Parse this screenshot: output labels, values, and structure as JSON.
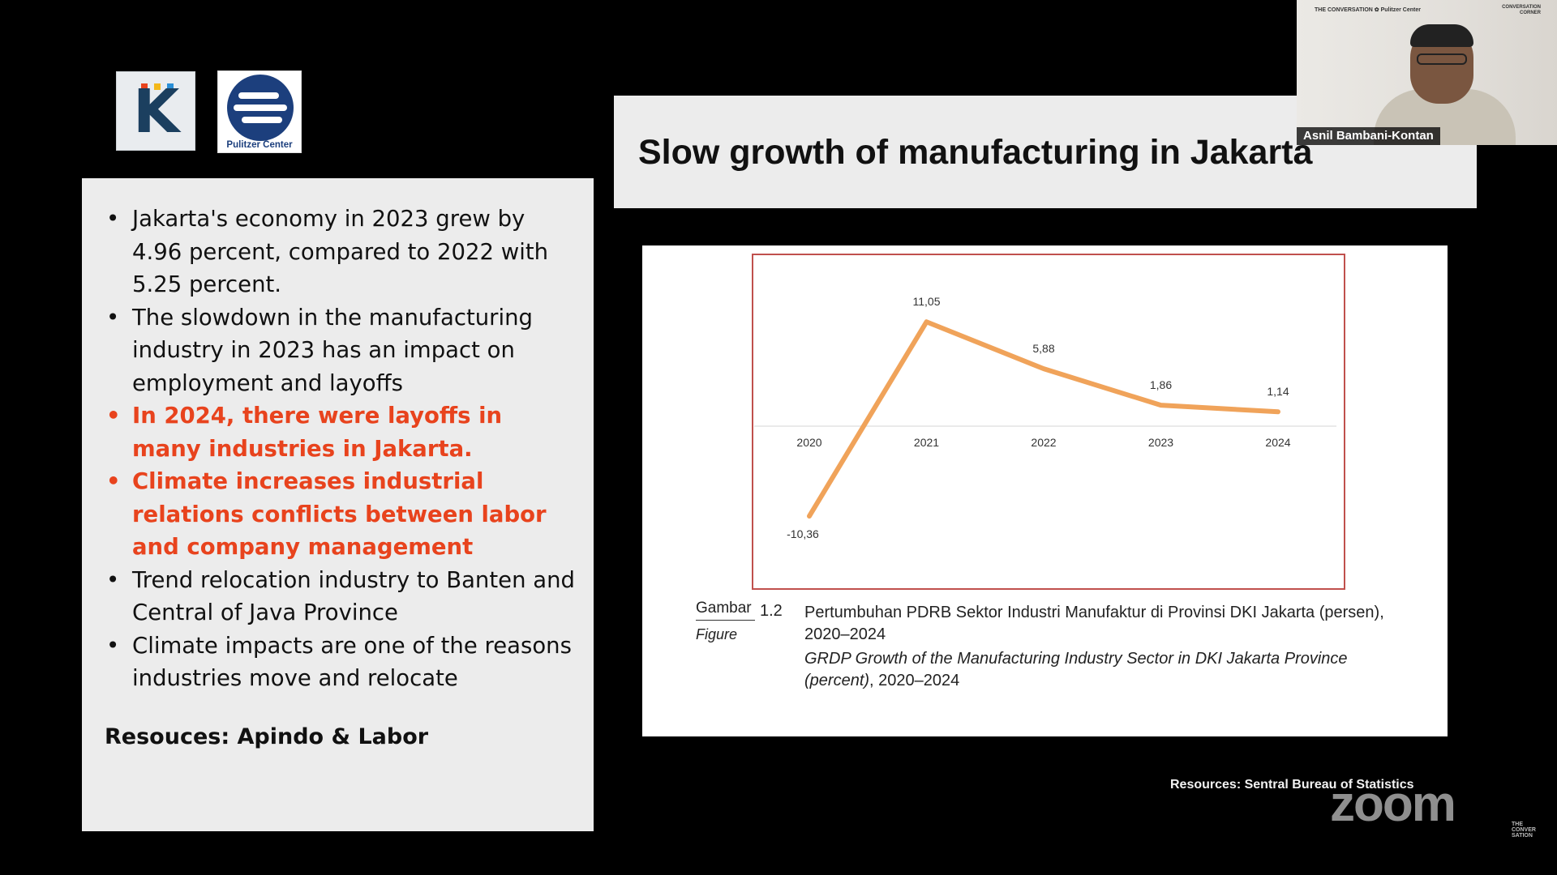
{
  "logos": {
    "k_letter": "K",
    "k_dot_colors": [
      "#e8431d",
      "#f3b81a",
      "#2a8fd6"
    ],
    "pulitzer_caption": "Pulitzer Center"
  },
  "left_panel": {
    "bullets": [
      {
        "text": "Jakarta's economy in 2023 grew by 4.96 percent, compared to 2022 with 5.25 percent.",
        "highlight": false
      },
      {
        "text": "The slowdown in the manufacturing industry in 2023 has an impact on employment and layoffs",
        "highlight": false
      },
      {
        "text": "In 2024, there were layoffs in many industries in Jakarta.",
        "highlight": true
      },
      {
        "text": "Climate increases industrial relations conflicts between labor and company management",
        "highlight": true
      },
      {
        "text": "Trend relocation industry to Banten and Central of Java Province",
        "highlight": false
      },
      {
        "text": "Climate impacts are one of the reasons industries move and relocate",
        "highlight": false
      }
    ],
    "bullet_glyph": "•",
    "resources": "Resouces: Apindo & Labor",
    "highlight_color": "#e8431d"
  },
  "slide_title": "Slow growth of manufacturing in Jakarta",
  "chart_data": {
    "type": "line",
    "x": [
      "2020",
      "2021",
      "2022",
      "2023",
      "2024"
    ],
    "series": [
      {
        "values": [
          -10.36,
          11.05,
          5.88,
          1.86,
          1.14
        ],
        "labels": [
          "-10,36",
          "11,05",
          "5,88",
          "1,86",
          "1,14"
        ],
        "color": "#f0a35a"
      }
    ],
    "ylim": [
      -12,
      13
    ],
    "frame_color": "#c0504d",
    "grid": false
  },
  "caption": {
    "gambar": "Gambar",
    "figure": "Figure",
    "number": "1.2",
    "text_id": "Pertumbuhan PDRB Sektor Industri Manufaktur di Provinsi DKI Jakarta (persen), 2020–2024",
    "text_en_italic": "GRDP Growth of the Manufacturing Industry Sector in DKI Jakarta Province (percent)",
    "text_en_rest": ", 2020–2024"
  },
  "footer": {
    "resources": "Resources: Sentral Bureau of Statistics",
    "zoom_logo": "zoom",
    "conversation_mark": "THE CONVER SATION"
  },
  "webcam": {
    "participant_name": "Asnil Bambani-Kontan",
    "brand_left": "THE CONVERSATION  ✿ Pulitzer Center",
    "brand_right": "CONVERSATION CORNER"
  }
}
